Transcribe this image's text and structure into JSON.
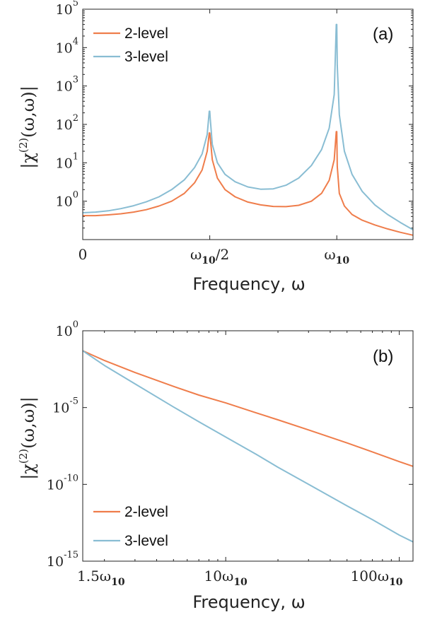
{
  "colors": {
    "two_level": "#ef7d4b",
    "three_level": "#89bdd3"
  },
  "chart_data": [
    {
      "type": "line",
      "panel_label": "(a)",
      "xlabel": "Frequency, ω",
      "ylabel": "|χ(2)(ω,ω)|",
      "ylabel_parts": {
        "chi": "χ",
        "sup": "(2)",
        "args": "(ω,ω)"
      },
      "yscale": "log",
      "ylim": [
        0.1,
        100000
      ],
      "xlim": [
        0,
        1.3
      ],
      "x_unit_label": "ω10",
      "yticks": [
        {
          "value": 1,
          "base": "10",
          "exp": "0"
        },
        {
          "value": 10,
          "base": "10",
          "exp": "1"
        },
        {
          "value": 100,
          "base": "10",
          "exp": "2"
        },
        {
          "value": 1000,
          "base": "10",
          "exp": "3"
        },
        {
          "value": 10000,
          "base": "10",
          "exp": "4"
        },
        {
          "value": 100000,
          "base": "10",
          "exp": "5"
        }
      ],
      "xticks": [
        {
          "value": 0,
          "main": "0",
          "sub": "",
          "tail": ""
        },
        {
          "value": 0.5,
          "main": "ω",
          "sub": "10",
          "tail": "/2"
        },
        {
          "value": 1.0,
          "main": "ω",
          "sub": "10",
          "tail": ""
        }
      ],
      "legend_position": "top-left",
      "series": [
        {
          "name": "2-level",
          "x": [
            0,
            0.05,
            0.1,
            0.15,
            0.2,
            0.25,
            0.3,
            0.35,
            0.4,
            0.44,
            0.47,
            0.49,
            0.498,
            0.5,
            0.502,
            0.51,
            0.53,
            0.56,
            0.6,
            0.65,
            0.7,
            0.75,
            0.8,
            0.85,
            0.9,
            0.94,
            0.97,
            0.99,
            0.998,
            1.0,
            1.002,
            1.01,
            1.03,
            1.06,
            1.1,
            1.15,
            1.2,
            1.25,
            1.3
          ],
          "y": [
            0.42,
            0.42,
            0.44,
            0.47,
            0.52,
            0.6,
            0.75,
            1.0,
            1.6,
            3.0,
            6.5,
            20,
            60,
            60,
            45,
            12,
            4.0,
            2.0,
            1.3,
            0.95,
            0.8,
            0.73,
            0.72,
            0.78,
            1.0,
            1.6,
            3.5,
            12,
            65,
            65,
            8,
            1.6,
            0.75,
            0.45,
            0.32,
            0.24,
            0.19,
            0.155,
            0.13
          ]
        },
        {
          "name": "3-level",
          "x": [
            0,
            0.05,
            0.1,
            0.15,
            0.2,
            0.25,
            0.3,
            0.35,
            0.4,
            0.44,
            0.47,
            0.49,
            0.498,
            0.5,
            0.502,
            0.51,
            0.53,
            0.56,
            0.6,
            0.65,
            0.7,
            0.75,
            0.8,
            0.85,
            0.9,
            0.94,
            0.97,
            0.99,
            0.998,
            1.0,
            1.002,
            1.01,
            1.03,
            1.06,
            1.1,
            1.15,
            1.2,
            1.25,
            1.3
          ],
          "y": [
            0.5,
            0.52,
            0.56,
            0.64,
            0.76,
            0.96,
            1.3,
            2.0,
            3.6,
            7.5,
            17,
            55,
            220,
            220,
            140,
            30,
            10,
            5.0,
            3.2,
            2.35,
            2.05,
            2.1,
            2.6,
            4.0,
            8.5,
            22,
            80,
            600,
            40000,
            40000,
            3500,
            180,
            20,
            5.0,
            1.8,
            0.8,
            0.45,
            0.28,
            0.18
          ]
        }
      ]
    },
    {
      "type": "line",
      "panel_label": "(b)",
      "xlabel": "Frequency, ω",
      "ylabel": "|χ(2)(ω,ω)|",
      "ylabel_parts": {
        "chi": "χ",
        "sup": "(2)",
        "args": "(ω,ω)"
      },
      "xscale": "log",
      "yscale": "log",
      "xlim": [
        1.5,
        120
      ],
      "ylim": [
        1e-15,
        1
      ],
      "yticks": [
        {
          "value": 1,
          "base": "10",
          "exp": "0"
        },
        {
          "value": 1e-05,
          "base": "10",
          "exp": "-5"
        },
        {
          "value": 1e-10,
          "base": "10",
          "exp": "-10"
        },
        {
          "value": 1e-15,
          "base": "10",
          "exp": "-15"
        }
      ],
      "xticks": [
        {
          "value": 1.5,
          "main": "1.5ω",
          "sub": "10",
          "tail": ""
        },
        {
          "value": 10,
          "main": "10ω",
          "sub": "10",
          "tail": ""
        },
        {
          "value": 100,
          "main": "100ω",
          "sub": "10",
          "tail": ""
        }
      ],
      "legend_position": "bottom-left",
      "series": [
        {
          "name": "2-level",
          "x": [
            1.5,
            2,
            3,
            5,
            7,
            10,
            15,
            20,
            30,
            50,
            70,
            100,
            120
          ],
          "y": [
            0.05,
            0.0115,
            0.0019,
            0.00024,
            6.5e-05,
            2e-05,
            4.5e-06,
            1.6e-06,
            3.5e-07,
            5e-08,
            1.3e-08,
            3e-09,
            1.5e-09
          ]
        },
        {
          "name": "3-level",
          "x": [
            1.5,
            2,
            3,
            5,
            7,
            10,
            15,
            20,
            30,
            50,
            70,
            100,
            120
          ],
          "y": [
            0.05,
            0.0055,
            0.00035,
            1.1e-05,
            1.2e-06,
            1.2e-07,
            9e-09,
            1.3e-09,
            1e-10,
            4e-12,
            5e-13,
            5e-14,
            1.8e-14
          ]
        }
      ]
    }
  ]
}
